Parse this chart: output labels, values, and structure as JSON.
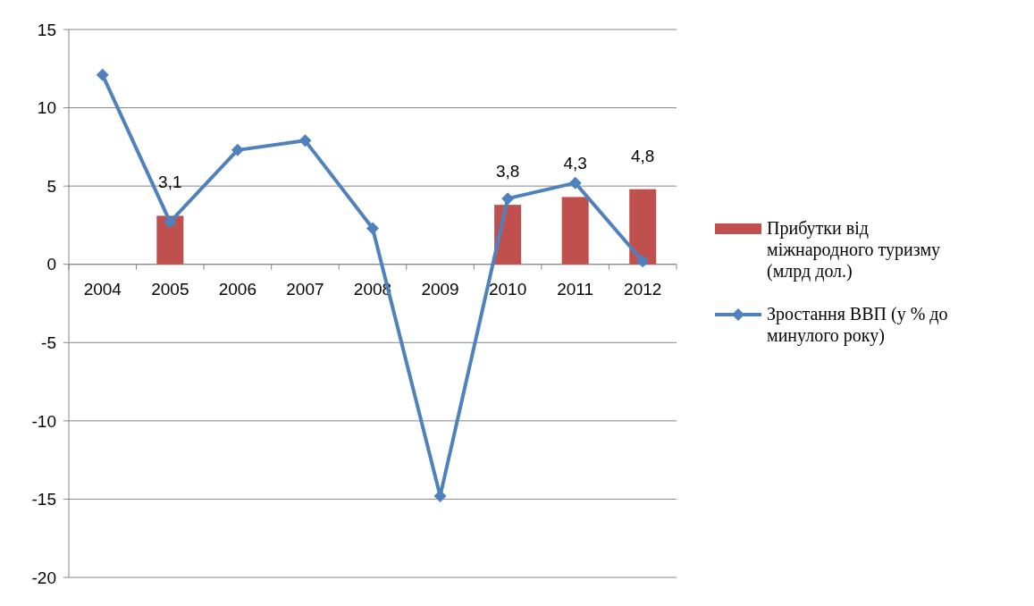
{
  "chart_data": {
    "type": "bar",
    "categories": [
      "2004",
      "2005",
      "2006",
      "2007",
      "2008",
      "2009",
      "2010",
      "2011",
      "2012"
    ],
    "series": [
      {
        "name": "Прибутки від міжнародного туризму (млрд дол.)",
        "color": "#c0504d",
        "values": [
          null,
          3.1,
          null,
          null,
          null,
          null,
          3.8,
          4.3,
          4.8
        ],
        "value_labels": [
          null,
          "3,1",
          null,
          null,
          null,
          null,
          "3,8",
          "4,3",
          "4,8"
        ]
      },
      {
        "type": "line",
        "name": "Зростання ВВП (у % до минулого року)",
        "color": "#4f81bd",
        "values": [
          12.1,
          2.7,
          7.3,
          7.9,
          2.3,
          -14.8,
          4.2,
          5.2,
          0.2
        ],
        "marker": "diamond"
      }
    ],
    "ylim": [
      -20,
      15
    ],
    "yticks": [
      -20,
      -15,
      -10,
      -5,
      0,
      5,
      10,
      15
    ],
    "grid": "y",
    "legend": "right"
  }
}
